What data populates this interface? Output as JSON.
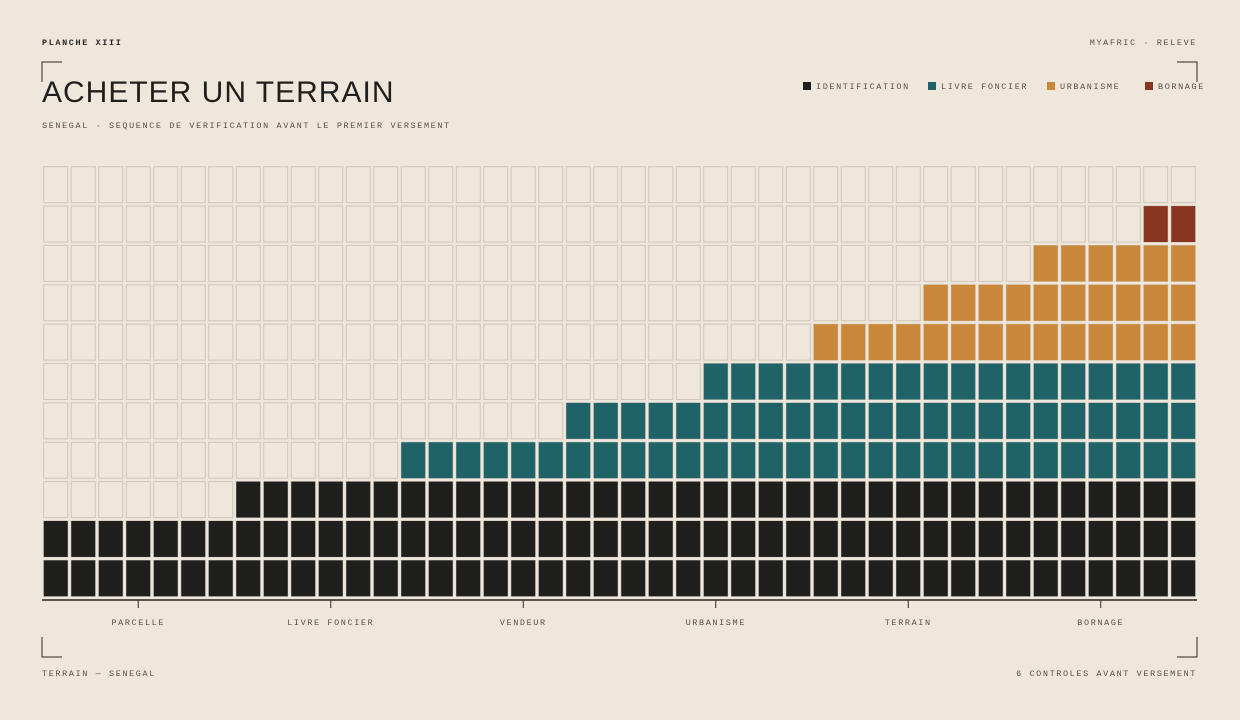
{
  "header": {
    "plate": "PLANCHE XIII",
    "source": "MYAFRIC · RELEVE"
  },
  "footer": {
    "left": "TERRAIN — SENEGAL",
    "right": "6 CONTROLES AVANT VERSEMENT"
  },
  "chart_data": {
    "type": "waffle-stack",
    "title": "ACHETER UN TERRAIN",
    "subtitle": "SENEGAL · SEQUENCE DE VERIFICATION AVANT LE PREMIER VERSEMENT",
    "categories": [
      null,
      null,
      null,
      "PARCELLE",
      null,
      null,
      null,
      null,
      null,
      null,
      "LIVRE FONCIER",
      null,
      null,
      null,
      null,
      null,
      null,
      "VENDEUR",
      null,
      null,
      null,
      null,
      null,
      null,
      "URBANISME",
      null,
      null,
      null,
      null,
      null,
      null,
      "TERRAIN",
      null,
      null,
      null,
      null,
      null,
      null,
      "BORNAGE",
      null,
      null,
      null
    ],
    "series": [
      {
        "name": "IDENTIFICATION",
        "color": "#1f1f1e",
        "values": [
          2,
          2,
          2,
          2,
          2,
          2,
          2,
          3,
          3,
          3,
          3,
          3,
          3,
          3,
          3,
          3,
          3,
          3,
          3,
          3,
          3,
          3,
          3,
          3,
          3,
          3,
          3,
          3,
          3,
          3,
          3,
          3,
          3,
          3,
          3,
          3,
          3,
          3,
          3,
          3,
          3,
          3
        ]
      },
      {
        "name": "LIVRE FONCIER",
        "color": "#1f6368",
        "values": [
          0,
          0,
          0,
          0,
          0,
          0,
          0,
          0,
          0,
          0,
          0,
          0,
          0,
          1,
          1,
          1,
          1,
          1,
          1,
          2,
          2,
          2,
          2,
          2,
          3,
          3,
          3,
          3,
          3,
          3,
          3,
          3,
          3,
          3,
          3,
          3,
          3,
          3,
          3,
          3,
          3,
          3
        ]
      },
      {
        "name": "URBANISME",
        "color": "#c98839",
        "values": [
          0,
          0,
          0,
          0,
          0,
          0,
          0,
          0,
          0,
          0,
          0,
          0,
          0,
          0,
          0,
          0,
          0,
          0,
          0,
          0,
          0,
          0,
          0,
          0,
          0,
          0,
          0,
          0,
          1,
          1,
          1,
          1,
          2,
          2,
          2,
          2,
          3,
          3,
          3,
          3,
          3,
          3
        ]
      },
      {
        "name": "BORNAGE",
        "color": "#8a3522",
        "values": [
          0,
          0,
          0,
          0,
          0,
          0,
          0,
          0,
          0,
          0,
          0,
          0,
          0,
          0,
          0,
          0,
          0,
          0,
          0,
          0,
          0,
          0,
          0,
          0,
          0,
          0,
          0,
          0,
          0,
          0,
          0,
          0,
          0,
          0,
          0,
          0,
          0,
          0,
          0,
          0,
          1,
          1
        ]
      }
    ],
    "ylim": [
      0,
      11
    ]
  }
}
